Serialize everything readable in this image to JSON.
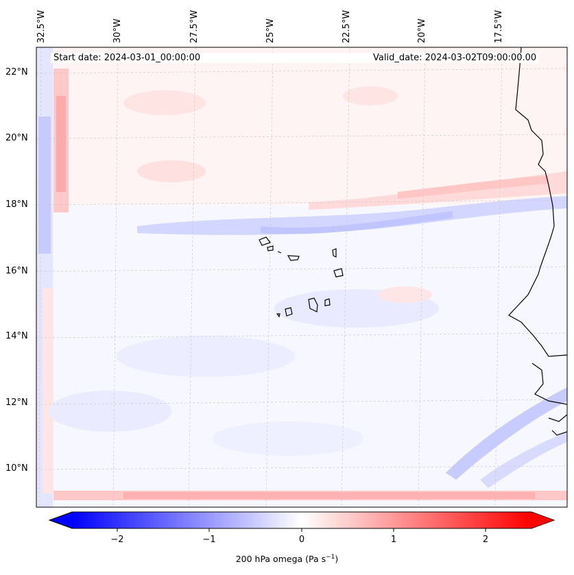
{
  "header": {
    "start_date": "Start date: 2024-03-01_00:00:00",
    "valid_date": "Valid_date: 2024-03-02T09:00:00.00"
  },
  "axes": {
    "lon_labels": [
      "32.5°W",
      "30°W",
      "27.5°W",
      "25°W",
      "22.5°W",
      "20°W",
      "17.5°W"
    ],
    "lat_labels": [
      "22°N",
      "20°N",
      "18°N",
      "16°N",
      "14°N",
      "12°N",
      "10°N"
    ]
  },
  "colorbar": {
    "ticks": [
      "−2",
      "−1",
      "0",
      "1",
      "2"
    ],
    "range": [
      -2.6,
      2.6
    ],
    "title": "200 hPa omega (Pa s",
    "title_exp": "−1",
    "title_close": ")"
  },
  "colors": {
    "negative": "#0000ff",
    "positive": "#ff0000",
    "coast": "#000000"
  }
}
